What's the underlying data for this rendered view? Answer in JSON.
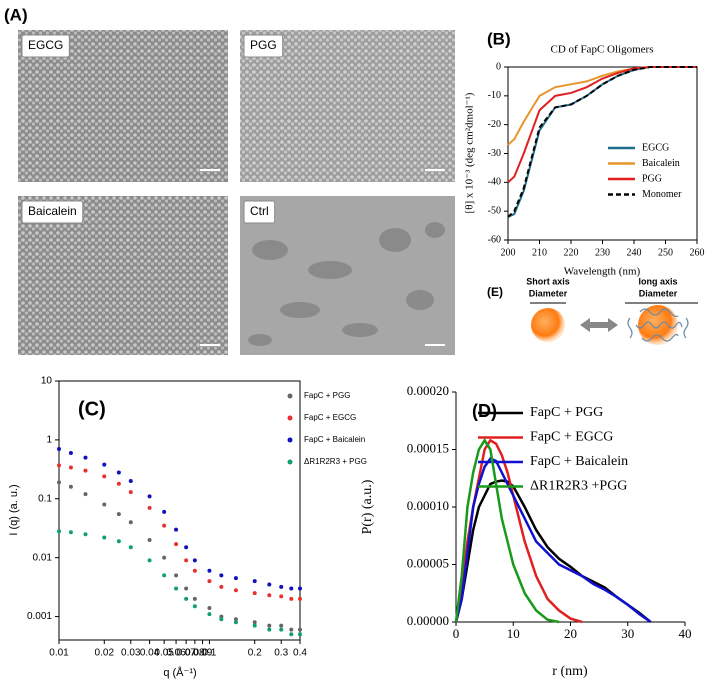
{
  "panel_a": {
    "label": "(A)",
    "images": [
      "EGCG",
      "PGG",
      "Baicalein",
      "Ctrl"
    ]
  },
  "panel_e": {
    "label": "(E)",
    "short_1": "Short axis",
    "short_2": "Diameter",
    "long_1": "long axis",
    "long_2": "Diameter"
  },
  "chart_data": [
    {
      "type": "line",
      "panel": "(B)",
      "title": "CD of FapC Oligomers",
      "x_label": "Wavelength (nm)",
      "y_label": "[θ] x 10⁻³ (deg cm²dmol⁻¹)",
      "x": [
        200,
        202,
        205,
        210,
        215,
        220,
        225,
        230,
        235,
        240,
        245,
        250,
        255,
        260
      ],
      "series": [
        {
          "name": "EGCG",
          "color": "#1f6f8b",
          "values": [
            -52,
            -51,
            -43,
            -22,
            -14,
            -13,
            -10,
            -6,
            -3,
            -1,
            0,
            0,
            0,
            0
          ]
        },
        {
          "name": "Baicalein",
          "color": "#e8962a",
          "values": [
            -27,
            -25,
            -19,
            -10,
            -7,
            -6,
            -5,
            -3,
            -1.5,
            -0.5,
            0,
            0,
            0,
            0
          ]
        },
        {
          "name": "PGG",
          "color": "#e02020",
          "values": [
            -40,
            -38,
            -30,
            -15,
            -10,
            -9,
            -7,
            -4,
            -2,
            -0.5,
            0,
            0,
            0,
            0
          ]
        },
        {
          "name": "Monomer",
          "color": "#000000",
          "dashed": true,
          "values": [
            -52,
            -50,
            -42,
            -21,
            -14,
            -13,
            -10,
            -6,
            -3,
            -1,
            0,
            0,
            0,
            0
          ]
        }
      ],
      "xlim": [
        200,
        260
      ],
      "xticks": [
        200,
        210,
        220,
        230,
        240,
        250,
        260
      ],
      "ylim": [
        -60,
        0
      ],
      "yticks": [
        -60,
        -50,
        -40,
        -30,
        -20,
        -10,
        0
      ]
    },
    {
      "type": "scatter",
      "panel": "(C)",
      "x_label": "q (Å⁻¹)",
      "y_label": "I (q) (a. u.)",
      "x_log": true,
      "y_log": true,
      "x": [
        0.01,
        0.012,
        0.015,
        0.02,
        0.025,
        0.03,
        0.04,
        0.05,
        0.06,
        0.07,
        0.08,
        0.1,
        0.12,
        0.15,
        0.2,
        0.25,
        0.3,
        0.35,
        0.4
      ],
      "series": [
        {
          "name": "FapC + PGG",
          "color": "#666666",
          "values": [
            0.19,
            0.16,
            0.12,
            0.08,
            0.055,
            0.04,
            0.02,
            0.01,
            0.005,
            0.003,
            0.002,
            0.0014,
            0.001,
            0.0009,
            0.0008,
            0.0007,
            0.0007,
            0.0006,
            0.0006
          ]
        },
        {
          "name": "FapC + EGCG",
          "color": "#e83030",
          "values": [
            0.37,
            0.34,
            0.3,
            0.24,
            0.18,
            0.13,
            0.07,
            0.035,
            0.017,
            0.009,
            0.006,
            0.004,
            0.0032,
            0.0028,
            0.0025,
            0.0023,
            0.0022,
            0.002,
            0.002
          ]
        },
        {
          "name": "FapC + Baicalein",
          "color": "#1010c0",
          "values": [
            0.7,
            0.6,
            0.5,
            0.38,
            0.28,
            0.2,
            0.11,
            0.06,
            0.03,
            0.015,
            0.009,
            0.006,
            0.005,
            0.0045,
            0.004,
            0.0035,
            0.0032,
            0.003,
            0.003
          ]
        },
        {
          "name": "ΔR1R2R3  + PGG",
          "color": "#10a070",
          "values": [
            0.028,
            0.027,
            0.025,
            0.022,
            0.019,
            0.015,
            0.009,
            0.005,
            0.003,
            0.002,
            0.0015,
            0.0011,
            0.0009,
            0.0008,
            0.0007,
            0.0006,
            0.0006,
            0.0005,
            0.0005
          ]
        }
      ],
      "xlim": [
        0.01,
        0.4
      ],
      "xticks": [
        0.01,
        0.02,
        0.03,
        0.04,
        0.05,
        0.06,
        0.07,
        0.08,
        0.09,
        0.1,
        0.2,
        0.3,
        0.4
      ],
      "ylim": [
        0.0004,
        10
      ],
      "yticks": [
        0.001,
        0.01,
        0.1,
        1,
        10
      ]
    },
    {
      "type": "line",
      "panel": "(D)",
      "x_label": "r (nm)",
      "y_label": "P(r) (a.u.)",
      "x": [
        0,
        1,
        2,
        3,
        4,
        5,
        6,
        7,
        8,
        9,
        10,
        12,
        14,
        16,
        18,
        20,
        22,
        24,
        26,
        28,
        30,
        32,
        34
      ],
      "series": [
        {
          "name": "FapC + PGG",
          "color": "#000000",
          "values": [
            0,
            2e-05,
            5e-05,
            8e-05,
            0.0001,
            0.00011,
            0.00012,
            0.000122,
            0.000123,
            0.000122,
            0.000118,
            0.0001,
            8e-05,
            6.5e-05,
            5.5e-05,
            4.8e-05,
            4e-05,
            3.5e-05,
            3e-05,
            2.2e-05,
            1.5e-05,
            8e-06,
            0
          ]
        },
        {
          "name": "FapC + EGCG",
          "color": "#e02020",
          "values": [
            0,
            3e-05,
            7e-05,
            0.0001,
            0.000125,
            0.00015,
            0.000158,
            0.000155,
            0.000145,
            0.00013,
            0.00011,
            7e-05,
            4e-05,
            2e-05,
            1e-05,
            3e-06,
            0,
            null,
            null,
            null,
            null,
            null,
            null
          ]
        },
        {
          "name": "FapC + Baicalein",
          "color": "#1010d0",
          "values": [
            0,
            2e-05,
            6e-05,
            0.0001,
            0.00012,
            0.000135,
            0.000142,
            0.00014,
            0.00013,
            0.00012,
            0.00011,
            9e-05,
            7e-05,
            6e-05,
            5e-05,
            4.5e-05,
            4e-05,
            3.3e-05,
            2.8e-05,
            2.2e-05,
            1.5e-05,
            7e-06,
            0
          ]
        },
        {
          "name": "ΔR1R2R3 +PGG",
          "color": "#1a9a1a",
          "values": [
            0,
            4e-05,
            0.0001,
            0.00013,
            0.00015,
            0.000158,
            0.00015,
            0.00012,
            9e-05,
            7e-05,
            5e-05,
            2.5e-05,
            1e-05,
            2e-06,
            0,
            null,
            null,
            null,
            null,
            null,
            null,
            null,
            null
          ]
        }
      ],
      "xlim": [
        0,
        40
      ],
      "xticks": [
        0,
        10,
        20,
        30,
        40
      ],
      "ylim": [
        0,
        0.0002
      ],
      "yticks": [
        {
          "value": 0,
          "label": "0.00000"
        },
        {
          "value": 5e-05,
          "label": "0.00005"
        },
        {
          "value": 0.0001,
          "label": "0.00010"
        },
        {
          "value": 0.00015,
          "label": "0.00015"
        },
        {
          "value": 0.0002,
          "label": "0.00020"
        }
      ]
    }
  ]
}
